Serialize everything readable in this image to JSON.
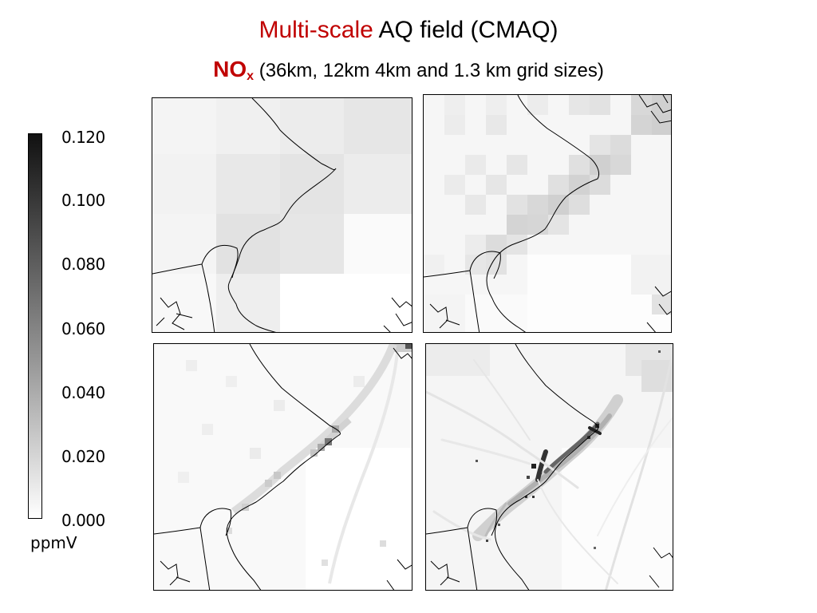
{
  "header": {
    "title_part1": "Multi-scale",
    "title_part2": " AQ field  (CMAQ)",
    "subtitle_species": "NO",
    "subtitle_sub": "x",
    "subtitle_rest": " (36km, 12km 4km and 1.3 km grid sizes)"
  },
  "colorbar": {
    "ticks": [
      "0.120",
      "0.100",
      "0.080",
      "0.060",
      "0.040",
      "0.020",
      "0.000"
    ],
    "unit": "ppmV",
    "top_color": "#111111",
    "bottom_color": "#ffffff"
  },
  "panels": [
    {
      "id": "grid-36km",
      "grid_km": 36
    },
    {
      "id": "grid-12km",
      "grid_km": 12
    },
    {
      "id": "grid-4km",
      "grid_km": 4
    },
    {
      "id": "grid-1.3km",
      "grid_km": 1.3
    }
  ],
  "colors": {
    "accent_red": "#c00000",
    "boundary_lines": "#000000"
  }
}
